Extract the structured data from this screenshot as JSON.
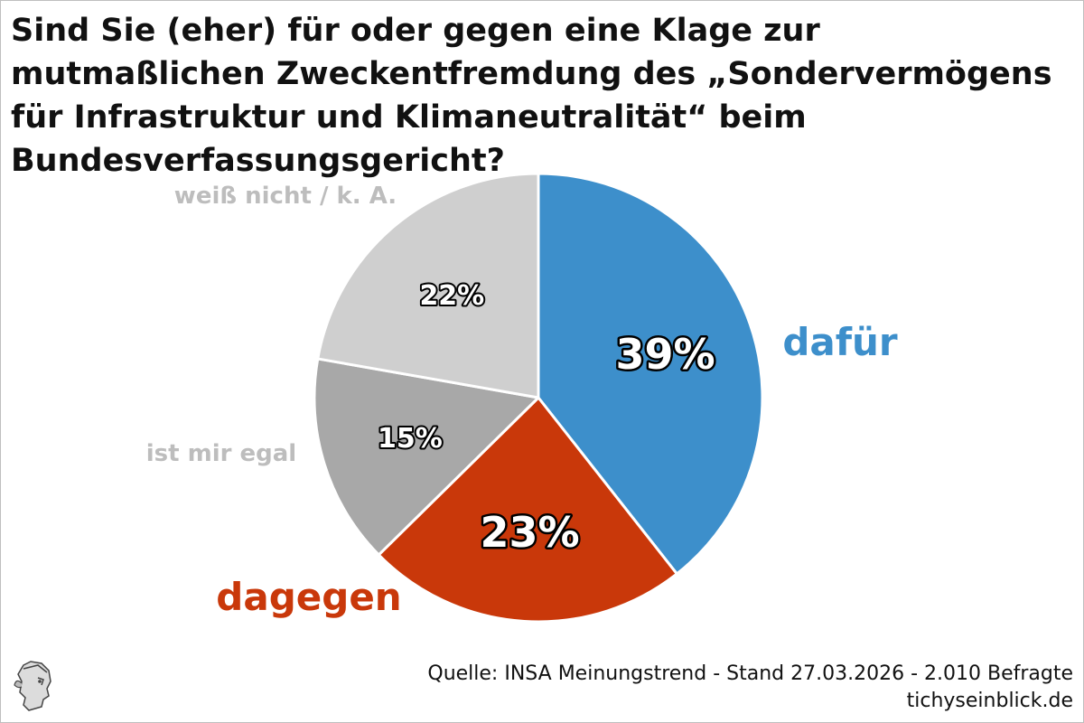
{
  "chart_data": {
    "type": "pie",
    "title": "Sind Sie (eher) für oder gegen eine Klage zur mutmaßlichen Zweckentfremdung des „Sondervermögens für Infrastruktur und Klimaneutralität“ beim Bundesverfassungsgericht?",
    "slices": [
      {
        "label": "dafür",
        "value": 39,
        "value_label": "39%",
        "color": "#3d8fcb",
        "label_color": "#3d8fcb"
      },
      {
        "label": "dagegen",
        "value": 23,
        "value_label": "23%",
        "color": "#c9380a",
        "label_color": "#c9380a"
      },
      {
        "label": "ist mir egal",
        "value": 15,
        "value_label": "15%",
        "color": "#a8a8a8",
        "label_color": "#bdbdbd"
      },
      {
        "label": "weiß nicht / k. A.",
        "value": 22,
        "value_label": "22%",
        "color": "#cfcfcf",
        "label_color": "#bdbdbd"
      }
    ]
  },
  "source": {
    "line1": "Quelle: INSA Meinungstrend - Stand 27.03.2026 - 2.010 Befragte",
    "line2": "tichyseinblick.de"
  },
  "logo": {
    "icon": "hermes-head-logo-icon"
  }
}
